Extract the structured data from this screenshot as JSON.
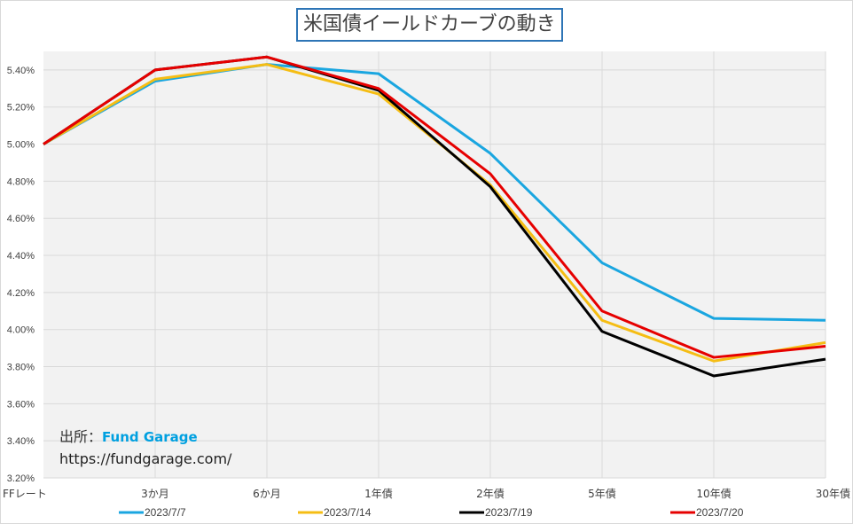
{
  "chart_data": {
    "type": "line",
    "title": "米国債イールドカーブの動き",
    "categories": [
      "FFレート",
      "3か月",
      "6か月",
      "1年債",
      "2年債",
      "5年債",
      "10年債",
      "30年債"
    ],
    "ylim": [
      3.2,
      5.5
    ],
    "yticks": [
      "3.20%",
      "3.40%",
      "3.60%",
      "3.80%",
      "4.00%",
      "4.20%",
      "4.40%",
      "4.60%",
      "4.80%",
      "5.00%",
      "5.20%",
      "5.40%"
    ],
    "ytick_values": [
      3.2,
      3.4,
      3.6,
      3.8,
      4.0,
      4.2,
      4.4,
      4.6,
      4.8,
      5.0,
      5.2,
      5.4
    ],
    "grid": true,
    "legend_position": "bottom",
    "series": [
      {
        "name": "2023/7/7",
        "color": "#1aa6e0",
        "values": [
          5.0,
          5.34,
          5.43,
          5.38,
          4.95,
          4.36,
          4.06,
          4.05
        ]
      },
      {
        "name": "2023/7/14",
        "color": "#f5bd14",
        "values": [
          5.0,
          5.35,
          5.43,
          5.27,
          4.78,
          4.05,
          3.83,
          3.93
        ]
      },
      {
        "name": "2023/7/19",
        "color": "#000000",
        "values": [
          5.0,
          5.4,
          5.47,
          5.29,
          4.77,
          3.99,
          3.75,
          3.84
        ]
      },
      {
        "name": "2023/7/20",
        "color": "#e60000",
        "values": [
          5.0,
          5.4,
          5.47,
          5.3,
          4.84,
          4.1,
          3.85,
          3.91
        ]
      }
    ]
  },
  "source": {
    "label": "出所：",
    "name": "Fund Garage",
    "url": "https://fundgarage.com/"
  }
}
